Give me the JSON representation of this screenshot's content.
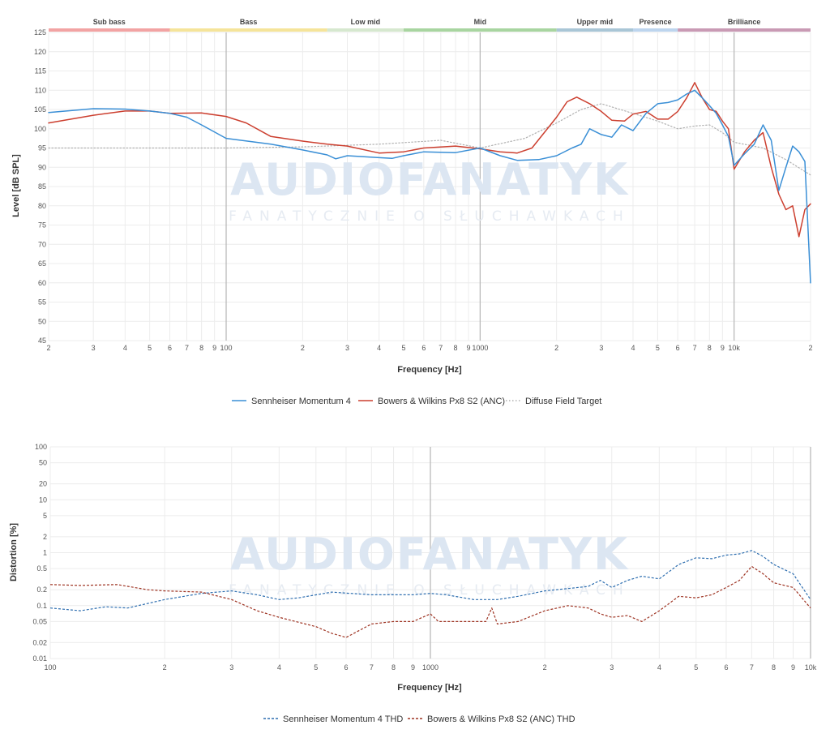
{
  "watermark": {
    "brand": "AUDIOFANATYK",
    "tagline": "FANATYCZNIE O SŁUCHAWKACH"
  },
  "chart_data": [
    {
      "type": "line",
      "title": "",
      "xlabel": "Frequency [Hz]",
      "ylabel": "Level [dB SPL]",
      "x_scale": "log",
      "xlim": [
        20,
        20000
      ],
      "ylim": [
        45,
        125
      ],
      "x_ticks": [
        20,
        30,
        40,
        50,
        60,
        70,
        80,
        90,
        100,
        200,
        300,
        400,
        500,
        600,
        700,
        800,
        900,
        1000,
        2000,
        3000,
        4000,
        5000,
        6000,
        7000,
        8000,
        9000,
        10000,
        20000
      ],
      "x_tick_labels": [
        "2",
        "3",
        "4",
        "5",
        "6",
        "7",
        "8",
        "9",
        "100",
        "2",
        "3",
        "4",
        "5",
        "6",
        "7",
        "8",
        "9",
        "1000",
        "2",
        "3",
        "4",
        "5",
        "6",
        "7",
        "8",
        "9",
        "10k",
        "2"
      ],
      "y_ticks": [
        45,
        50,
        55,
        60,
        65,
        70,
        75,
        80,
        85,
        90,
        95,
        100,
        105,
        110,
        115,
        120,
        125
      ],
      "grid": true,
      "legend_position": "bottom-center",
      "bands": [
        {
          "label": "Sub bass",
          "from": 20,
          "to": 60,
          "color": "#f2a3a3"
        },
        {
          "label": "Bass",
          "from": 60,
          "to": 250,
          "color": "#f5e49a"
        },
        {
          "label": "Low mid",
          "from": 250,
          "to": 500,
          "color": "#d6e8cf"
        },
        {
          "label": "Mid",
          "from": 500,
          "to": 2000,
          "color": "#a8d5a0"
        },
        {
          "label": "Upper mid",
          "from": 2000,
          "to": 4000,
          "color": "#a9c6d6"
        },
        {
          "label": "Presence",
          "from": 4000,
          "to": 6000,
          "color": "#bdd5ee"
        },
        {
          "label": "Brilliance",
          "from": 6000,
          "to": 20000,
          "color": "#c99ab4"
        }
      ],
      "series": [
        {
          "name": "Sennheiser Momentum 4",
          "color": "#3a8fd6",
          "style": "solid",
          "points": [
            [
              20,
              104.2
            ],
            [
              30,
              105.2
            ],
            [
              40,
              105.1
            ],
            [
              50,
              104.6
            ],
            [
              60,
              104
            ],
            [
              70,
              103
            ],
            [
              80,
              101
            ],
            [
              100,
              97.5
            ],
            [
              150,
              96
            ],
            [
              200,
              94.5
            ],
            [
              250,
              93.2
            ],
            [
              270,
              92.2
            ],
            [
              300,
              93
            ],
            [
              400,
              92.5
            ],
            [
              450,
              92.3
            ],
            [
              500,
              93
            ],
            [
              600,
              94
            ],
            [
              800,
              93.8
            ],
            [
              1000,
              95
            ],
            [
              1200,
              93
            ],
            [
              1400,
              91.8
            ],
            [
              1700,
              92
            ],
            [
              2000,
              93
            ],
            [
              2300,
              95
            ],
            [
              2500,
              96
            ],
            [
              2700,
              100
            ],
            [
              3000,
              98.5
            ],
            [
              3300,
              97.8
            ],
            [
              3600,
              101
            ],
            [
              4000,
              99.5
            ],
            [
              4500,
              104
            ],
            [
              5000,
              106.5
            ],
            [
              5500,
              106.8
            ],
            [
              6000,
              107.5
            ],
            [
              6500,
              109
            ],
            [
              7000,
              110
            ],
            [
              7500,
              108
            ],
            [
              8000,
              106
            ],
            [
              8500,
              104
            ],
            [
              9000,
              101
            ],
            [
              9500,
              98
            ],
            [
              10000,
              90.5
            ],
            [
              11000,
              93.5
            ],
            [
              12000,
              96
            ],
            [
              13000,
              101
            ],
            [
              14000,
              97
            ],
            [
              15000,
              84
            ],
            [
              16000,
              90
            ],
            [
              17000,
              95.5
            ],
            [
              18000,
              94
            ],
            [
              19000,
              91.5
            ],
            [
              20000,
              60
            ]
          ]
        },
        {
          "name": "Bowers & Wilkins Px8 S2 (ANC)",
          "color": "#cc3f2f",
          "style": "solid",
          "points": [
            [
              20,
              101.5
            ],
            [
              30,
              103.5
            ],
            [
              40,
              104.6
            ],
            [
              50,
              104.6
            ],
            [
              60,
              104
            ],
            [
              80,
              104.1
            ],
            [
              100,
              103.2
            ],
            [
              120,
              101.5
            ],
            [
              150,
              98
            ],
            [
              200,
              96.8
            ],
            [
              250,
              96
            ],
            [
              300,
              95.5
            ],
            [
              400,
              93.7
            ],
            [
              500,
              94
            ],
            [
              600,
              95
            ],
            [
              800,
              95.5
            ],
            [
              1000,
              94.8
            ],
            [
              1200,
              94
            ],
            [
              1400,
              93.7
            ],
            [
              1600,
              95
            ],
            [
              2000,
              103
            ],
            [
              2200,
              107
            ],
            [
              2400,
              108.2
            ],
            [
              2700,
              106.5
            ],
            [
              3000,
              104.5
            ],
            [
              3300,
              102.2
            ],
            [
              3700,
              102
            ],
            [
              4000,
              103.8
            ],
            [
              4500,
              104.5
            ],
            [
              5000,
              102.5
            ],
            [
              5500,
              102.5
            ],
            [
              6000,
              104.5
            ],
            [
              6500,
              108
            ],
            [
              7000,
              112
            ],
            [
              7500,
              108
            ],
            [
              8000,
              105
            ],
            [
              8500,
              104.5
            ],
            [
              9000,
              102
            ],
            [
              9500,
              100
            ],
            [
              10000,
              89.5
            ],
            [
              11000,
              94
            ],
            [
              12000,
              97
            ],
            [
              13000,
              99
            ],
            [
              14000,
              90
            ],
            [
              15000,
              83
            ],
            [
              16000,
              79
            ],
            [
              17000,
              80
            ],
            [
              18000,
              72
            ],
            [
              19000,
              79
            ],
            [
              20000,
              80.5
            ]
          ]
        },
        {
          "name": "Diffuse Field Target",
          "color": "#b0b0b0",
          "style": "dotted",
          "points": [
            [
              20,
              95
            ],
            [
              100,
              95
            ],
            [
              200,
              95.3
            ],
            [
              400,
              96
            ],
            [
              700,
              97
            ],
            [
              1000,
              95
            ],
            [
              1500,
              97.5
            ],
            [
              2000,
              101.5
            ],
            [
              2500,
              105
            ],
            [
              3000,
              106.5
            ],
            [
              4000,
              104
            ],
            [
              5000,
              102
            ],
            [
              6000,
              100
            ],
            [
              7000,
              100.7
            ],
            [
              8000,
              101
            ],
            [
              9000,
              99
            ],
            [
              10000,
              96.5
            ],
            [
              13000,
              95
            ],
            [
              16000,
              92
            ],
            [
              20000,
              88
            ]
          ]
        }
      ]
    },
    {
      "type": "line",
      "title": "",
      "xlabel": "Frequency [Hz]",
      "ylabel": "Distortion [%]",
      "x_scale": "log",
      "y_scale": "log",
      "xlim": [
        100,
        10000
      ],
      "ylim": [
        0.01,
        100
      ],
      "x_ticks": [
        100,
        200,
        300,
        400,
        500,
        600,
        700,
        800,
        900,
        1000,
        2000,
        3000,
        4000,
        5000,
        6000,
        7000,
        8000,
        9000,
        10000
      ],
      "x_tick_labels": [
        "100",
        "2",
        "3",
        "4",
        "5",
        "6",
        "7",
        "8",
        "9",
        "1000",
        "2",
        "3",
        "4",
        "5",
        "6",
        "7",
        "8",
        "9",
        "10k"
      ],
      "y_ticks": [
        0.01,
        0.02,
        0.05,
        0.1,
        0.2,
        0.5,
        1,
        2,
        5,
        10,
        20,
        50,
        100
      ],
      "y_tick_labels": [
        "0.01",
        "0.02",
        "0.05",
        "0.1",
        "0.2",
        "0.5",
        "1",
        "2",
        "5",
        "10",
        "20",
        "50",
        "100"
      ],
      "grid": true,
      "legend_position": "bottom-center",
      "series": [
        {
          "name": "Sennheiser Momentum 4 THD",
          "color": "#2f6fb0",
          "style": "dashed",
          "points": [
            [
              100,
              0.09
            ],
            [
              120,
              0.08
            ],
            [
              140,
              0.095
            ],
            [
              160,
              0.09
            ],
            [
              200,
              0.13
            ],
            [
              250,
              0.17
            ],
            [
              300,
              0.19
            ],
            [
              350,
              0.16
            ],
            [
              400,
              0.13
            ],
            [
              450,
              0.14
            ],
            [
              550,
              0.18
            ],
            [
              700,
              0.16
            ],
            [
              900,
              0.16
            ],
            [
              1000,
              0.17
            ],
            [
              1100,
              0.16
            ],
            [
              1300,
              0.13
            ],
            [
              1500,
              0.13
            ],
            [
              1700,
              0.15
            ],
            [
              2000,
              0.19
            ],
            [
              2300,
              0.21
            ],
            [
              2600,
              0.23
            ],
            [
              2800,
              0.3
            ],
            [
              3000,
              0.22
            ],
            [
              3300,
              0.3
            ],
            [
              3600,
              0.36
            ],
            [
              4000,
              0.32
            ],
            [
              4500,
              0.6
            ],
            [
              5000,
              0.8
            ],
            [
              5500,
              0.77
            ],
            [
              6000,
              0.9
            ],
            [
              6500,
              0.95
            ],
            [
              7000,
              1.1
            ],
            [
              7500,
              0.85
            ],
            [
              8000,
              0.6
            ],
            [
              9000,
              0.4
            ],
            [
              10000,
              0.13
            ]
          ]
        },
        {
          "name": "Bowers & Wilkins Px8 S2 (ANC) THD",
          "color": "#9e3322",
          "style": "dashed",
          "points": [
            [
              100,
              0.25
            ],
            [
              120,
              0.24
            ],
            [
              150,
              0.25
            ],
            [
              180,
              0.2
            ],
            [
              200,
              0.19
            ],
            [
              250,
              0.18
            ],
            [
              300,
              0.13
            ],
            [
              350,
              0.08
            ],
            [
              400,
              0.06
            ],
            [
              500,
              0.04
            ],
            [
              550,
              0.03
            ],
            [
              600,
              0.025
            ],
            [
              700,
              0.045
            ],
            [
              800,
              0.05
            ],
            [
              900,
              0.05
            ],
            [
              1000,
              0.07
            ],
            [
              1050,
              0.05
            ],
            [
              1200,
              0.05
            ],
            [
              1400,
              0.05
            ],
            [
              1450,
              0.09
            ],
            [
              1500,
              0.045
            ],
            [
              1700,
              0.05
            ],
            [
              2000,
              0.08
            ],
            [
              2300,
              0.1
            ],
            [
              2600,
              0.09
            ],
            [
              2800,
              0.07
            ],
            [
              3000,
              0.06
            ],
            [
              3300,
              0.065
            ],
            [
              3600,
              0.05
            ],
            [
              4000,
              0.08
            ],
            [
              4500,
              0.15
            ],
            [
              5000,
              0.14
            ],
            [
              5500,
              0.16
            ],
            [
              6000,
              0.22
            ],
            [
              6500,
              0.3
            ],
            [
              7000,
              0.55
            ],
            [
              7500,
              0.4
            ],
            [
              8000,
              0.27
            ],
            [
              9000,
              0.22
            ],
            [
              10000,
              0.09
            ]
          ]
        }
      ]
    }
  ]
}
